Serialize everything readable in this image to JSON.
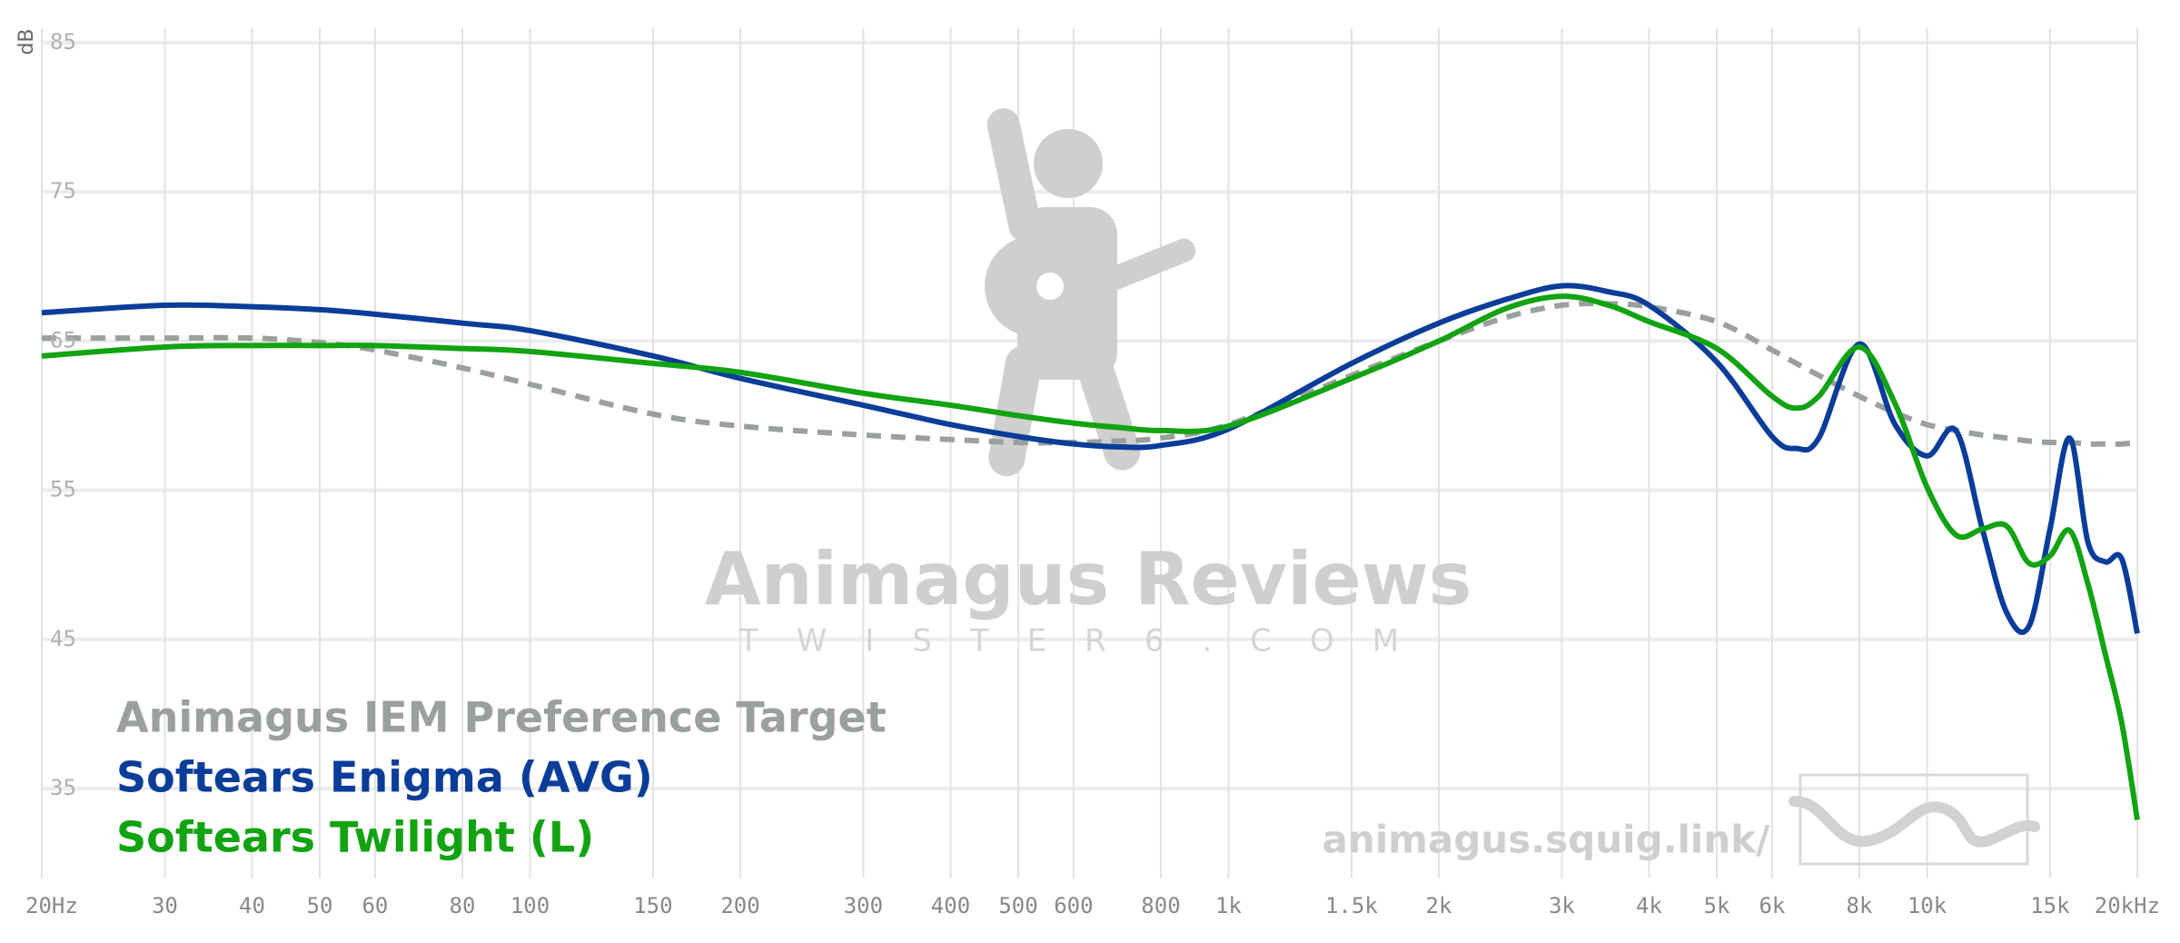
{
  "chart_data": {
    "type": "line",
    "y_label": "dB",
    "x": [
      20,
      30,
      40,
      50,
      60,
      80,
      100,
      150,
      200,
      300,
      400,
      500,
      600,
      700,
      800,
      1000,
      1500,
      2000,
      2500,
      3000,
      3500,
      4000,
      5000,
      6000,
      6500,
      7000,
      8000,
      9000,
      10000,
      11000,
      12000,
      13000,
      14000,
      15000,
      16000,
      17000,
      18000,
      19000,
      20000
    ],
    "series": [
      {
        "name": "Animagus IEM Preference Target",
        "color": "#9aa09c",
        "line_style": "dashed",
        "values": [
          65.2,
          65.2,
          65.2,
          64.9,
          64.4,
          63.2,
          62.1,
          60.1,
          59.3,
          58.7,
          58.4,
          58.2,
          58.2,
          58.3,
          58.5,
          59.4,
          62.7,
          65,
          66.6,
          67.4,
          67.5,
          67.3,
          66.3,
          64.4,
          63.5,
          62.7,
          61.3,
          60.2,
          59.4,
          59,
          58.7,
          58.5,
          58.3,
          58.2,
          58.2,
          58.1,
          58.1,
          58.1,
          58.2
        ]
      },
      {
        "name": "Softears Enigma (AVG)",
        "color": "#0a3d99",
        "line_style": "solid",
        "values": [
          66.9,
          67.4,
          67.3,
          67.1,
          66.8,
          66.2,
          65.7,
          64,
          62.5,
          60.7,
          59.4,
          58.6,
          58.1,
          57.9,
          58,
          59.1,
          63.5,
          66.2,
          67.8,
          68.7,
          68.3,
          67.4,
          63.6,
          58.6,
          57.8,
          58.5,
          64.8,
          59.4,
          57.3,
          59,
          52.4,
          46.8,
          45.9,
          52.4,
          58.5,
          51.5,
          50.2,
          50.4,
          45.4
        ]
      },
      {
        "name": "Softears Twilight (L)",
        "color": "#12a312",
        "line_style": "solid",
        "values": [
          64,
          64.6,
          64.7,
          64.7,
          64.7,
          64.5,
          64.3,
          63.5,
          62.9,
          61.5,
          60.7,
          60,
          59.5,
          59.2,
          59,
          59.3,
          62.5,
          65,
          67.2,
          68,
          67.4,
          66.3,
          64.5,
          61.3,
          60.5,
          61.3,
          64.6,
          60.8,
          55.2,
          52,
          52.4,
          52.6,
          50.1,
          50.6,
          52.3,
          48.7,
          44,
          39.4,
          32.9
        ]
      }
    ],
    "xlim": [
      20,
      20000
    ],
    "log_x": true,
    "xticks": [
      {
        "value": 20,
        "label": "20Hz"
      },
      30,
      40,
      50,
      60,
      80,
      100,
      150,
      200,
      300,
      400,
      500,
      600,
      800,
      {
        "value": 1000,
        "label": "1k"
      },
      {
        "value": 1500,
        "label": "1.5k"
      },
      {
        "value": 2000,
        "label": "2k"
      },
      {
        "value": 3000,
        "label": "3k"
      },
      {
        "value": 4000,
        "label": "4k"
      },
      {
        "value": 5000,
        "label": "5k"
      },
      {
        "value": 6000,
        "label": "6k"
      },
      {
        "value": 8000,
        "label": "8k"
      },
      {
        "value": 10000,
        "label": "10k"
      },
      {
        "value": 15000,
        "label": "15k"
      },
      {
        "value": 20000,
        "label": "20kHz"
      }
    ],
    "ylim": [
      29,
      86
    ],
    "yticks": [
      35,
      45,
      55,
      65,
      75,
      85
    ],
    "grid": true,
    "legend": "lower left",
    "watermark": {
      "title": "Animagus Reviews",
      "subtitle": "TWISTER6.COM",
      "url": "animagus.squig.link/"
    }
  }
}
